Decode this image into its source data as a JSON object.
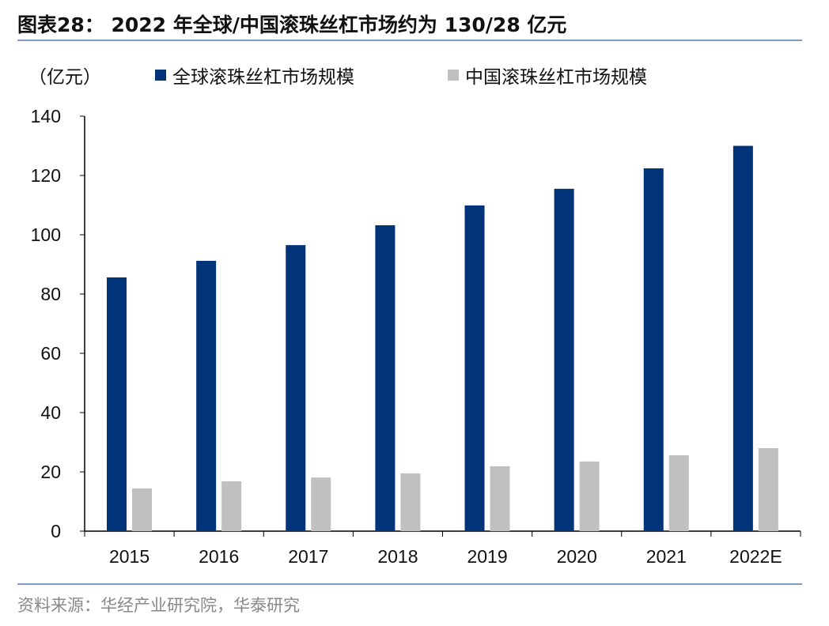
{
  "title": "图表28： 2022 年全球/中国滚珠丝杠市场约为 130/28 亿元",
  "source": "资料来源：华经产业研究院，华泰研究",
  "chart_data": {
    "type": "bar",
    "unit_label": "（亿元）",
    "categories": [
      "2015",
      "2016",
      "2017",
      "2018",
      "2019",
      "2020",
      "2021",
      "2022E"
    ],
    "series": [
      {
        "name": "全球滚珠丝杠市场规模",
        "color": "#003378",
        "values": [
          85.6,
          91.2,
          96.5,
          103.2,
          109.9,
          115.5,
          122.4,
          130
        ]
      },
      {
        "name": "中国滚珠丝杠市场规模",
        "color": "#c0c0c0",
        "values": [
          14.4,
          16.8,
          18.1,
          19.5,
          21.9,
          23.5,
          25.6,
          28
        ]
      }
    ],
    "ylim": [
      0,
      140
    ],
    "yticks": [
      0,
      20,
      40,
      60,
      80,
      100,
      120,
      140
    ],
    "grid": false,
    "legend": "top"
  }
}
